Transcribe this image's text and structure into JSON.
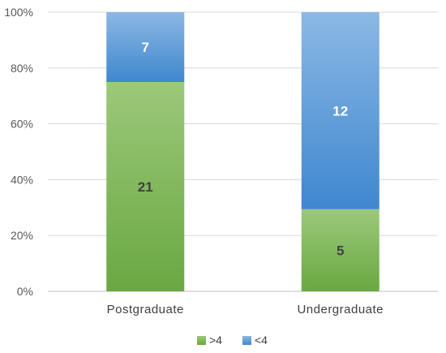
{
  "chart_data": {
    "type": "bar",
    "stacked": true,
    "percent_stacked": true,
    "categories": [
      "Postgraduate",
      "Undergraduate"
    ],
    "series": [
      {
        "name": ">4",
        "values": [
          21,
          5
        ],
        "color": "#6aa842",
        "color_light": "#9cc87a",
        "label_color": "#404040"
      },
      {
        "name": "<4",
        "values": [
          7,
          12
        ],
        "color": "#3f87cf",
        "color_light": "#8cb8e4",
        "label_color": "#ffffff"
      }
    ],
    "y_ticks": [
      "0%",
      "20%",
      "40%",
      "60%",
      "80%",
      "100%"
    ],
    "ylim": [
      0,
      100
    ],
    "grid": true,
    "legend": "bottom"
  }
}
